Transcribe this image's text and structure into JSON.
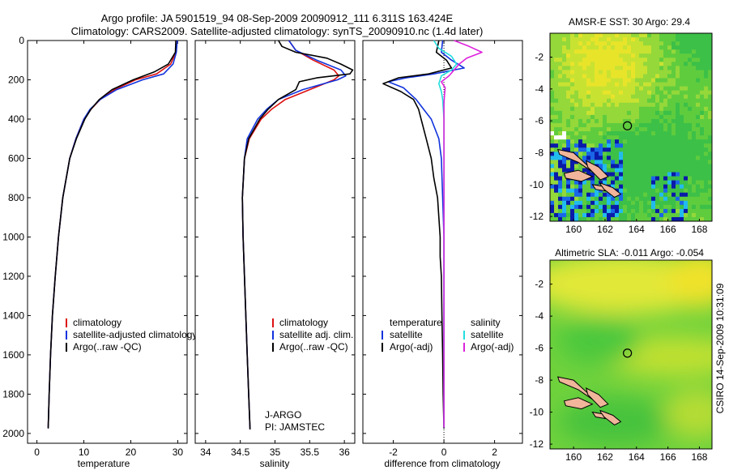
{
  "header": {
    "line1": "Argo profile: JA 5901519_94 08-Sep-2009 20090912_111 6.311S 163.424E",
    "line2": "Climatology: CARS2009. Satellite-adjusted climatology: synTS_20090910.nc (1.4d later)"
  },
  "footer": {
    "stamp": "CSIRO 14-Sep-2009 10:31:09"
  },
  "colors": {
    "climatology": "#dd1111",
    "satellite": "#1133dd",
    "argo": "#000000",
    "satellite_diff": "#22dddd",
    "argo_diff": "#dd22dd",
    "land": "#f0b59a",
    "map_green": "#55d040",
    "map_yellow": "#e6e830"
  },
  "chart_data": [
    {
      "type": "line",
      "id": "temperature",
      "xlabel": "temperature",
      "ylabel": "",
      "xlim": [
        -2,
        32
      ],
      "ylim": [
        2050,
        0
      ],
      "xticks": [
        "0",
        "10",
        "20",
        "30"
      ],
      "xtick_values": [
        0,
        10,
        20,
        30
      ],
      "yticks": [
        "0",
        "200",
        "400",
        "600",
        "800",
        "1000",
        "1200",
        "1400",
        "1600",
        "1800",
        "2000"
      ],
      "ytick_values": [
        0,
        200,
        400,
        600,
        800,
        1000,
        1200,
        1400,
        1600,
        1800,
        2000
      ],
      "legend_placement": "lower-middle",
      "legend": [
        "climatology",
        "satellite-adjusted climatology",
        "Argo(..raw -QC)"
      ],
      "series": [
        {
          "name": "climatology",
          "color": "#dd1111",
          "depth": [
            0,
            60,
            120,
            170,
            200,
            250,
            300,
            350,
            400,
            500,
            600,
            800,
            1000,
            1200,
            1400,
            1600,
            1800,
            1970
          ],
          "values": [
            29.9,
            29.6,
            28.5,
            25.5,
            21,
            16.5,
            13.5,
            11.5,
            10,
            8.3,
            7,
            5.5,
            4.6,
            3.9,
            3.3,
            2.9,
            2.6,
            2.4
          ]
        },
        {
          "name": "satellite-adjusted climatology",
          "color": "#1133dd",
          "depth": [
            0,
            60,
            120,
            170,
            200,
            250,
            300,
            350,
            400,
            500,
            600,
            800,
            1000,
            1200,
            1400,
            1600,
            1800,
            1970
          ],
          "values": [
            29.9,
            29.7,
            29,
            27,
            22.5,
            17,
            13.5,
            11.3,
            10,
            8.3,
            7,
            5.5,
            4.6,
            3.9,
            3.3,
            2.9,
            2.6,
            2.4
          ]
        },
        {
          "name": "Argo(..raw -QC)",
          "color": "#000000",
          "depth": [
            0,
            60,
            120,
            160,
            200,
            250,
            300,
            350,
            400,
            500,
            600,
            800,
            1000,
            1200,
            1400,
            1600,
            1800,
            1975
          ],
          "values": [
            29.6,
            29.5,
            28,
            25,
            20.5,
            16,
            13.3,
            11.5,
            10.2,
            8.4,
            7,
            5.5,
            4.6,
            3.9,
            3.3,
            2.9,
            2.6,
            2.4
          ]
        }
      ]
    },
    {
      "type": "line",
      "id": "salinity",
      "xlabel": "salinity",
      "ylabel": "",
      "xlim": [
        33.85,
        36.15
      ],
      "ylim": [
        2050,
        0
      ],
      "xticks": [
        "34",
        "34.5",
        "35",
        "35.5",
        "36"
      ],
      "xtick_values": [
        34,
        34.5,
        35,
        35.5,
        36
      ],
      "legend_placement": "lower-right",
      "legend": [
        "climatology",
        "satellite adj. clim.",
        "Argo(..raw -QC)"
      ],
      "annotations": [
        "J-ARGO",
        "PI: JAMSTEC"
      ],
      "series": [
        {
          "name": "climatology",
          "color": "#dd1111",
          "depth": [
            0,
            50,
            100,
            150,
            180,
            200,
            250,
            300,
            350,
            400,
            500,
            600,
            800,
            1000,
            1200,
            1400,
            1600,
            1800,
            1980
          ],
          "values": [
            35.2,
            35.3,
            35.55,
            35.85,
            35.92,
            35.85,
            35.5,
            35.15,
            34.95,
            34.8,
            34.63,
            34.56,
            34.53,
            34.54,
            34.56,
            34.58,
            34.6,
            34.62,
            34.64
          ]
        },
        {
          "name": "satellite adj. clim.",
          "color": "#1133dd",
          "depth": [
            0,
            50,
            100,
            150,
            180,
            200,
            250,
            300,
            350,
            400,
            500,
            600,
            800,
            1000,
            1200,
            1400,
            1600,
            1800,
            1980
          ],
          "values": [
            35.2,
            35.3,
            35.6,
            35.95,
            36.02,
            35.9,
            35.4,
            35.05,
            34.88,
            34.75,
            34.6,
            34.56,
            34.53,
            34.54,
            34.56,
            34.58,
            34.6,
            34.62,
            34.64
          ]
        },
        {
          "name": "Argo(..raw -QC)",
          "color": "#000000",
          "depth": [
            0,
            30,
            60,
            90,
            120,
            150,
            170,
            190,
            210,
            250,
            300,
            350,
            400,
            500,
            600,
            800,
            1000,
            1200,
            1400,
            1600,
            1800,
            1980
          ],
          "values": [
            35.05,
            35.1,
            35.3,
            35.75,
            35.95,
            36.12,
            36.08,
            35.6,
            35.35,
            35.3,
            35.05,
            34.9,
            34.78,
            34.62,
            34.56,
            34.53,
            34.54,
            34.56,
            34.58,
            34.6,
            34.62,
            34.64
          ]
        }
      ]
    },
    {
      "type": "line",
      "id": "difference",
      "xlabel": "difference from climatology",
      "ylabel": "",
      "xlim": [
        -3.2,
        3.1
      ],
      "ylim": [
        2050,
        0
      ],
      "xticks": [
        "-2",
        "0",
        "2"
      ],
      "xtick_values": [
        -2,
        0,
        2
      ],
      "legend_placement": "lower-middle",
      "legend": [
        {
          "title": "temperature",
          "items": [
            "satellite",
            "Argo(-adj)"
          ]
        },
        {
          "title": "salinity",
          "items": [
            "satellite",
            "Argo(-adj)"
          ]
        }
      ],
      "series": [
        {
          "name": "satellite",
          "group": "temperature",
          "color": "#1133dd",
          "depth": [
            0,
            60,
            100,
            140,
            170,
            190,
            210,
            240,
            300,
            350,
            400,
            500,
            600,
            800,
            1000,
            1500,
            1970
          ],
          "values": [
            -0.05,
            -0.1,
            0.3,
            0.8,
            -0.4,
            -1.5,
            -2.2,
            -1.6,
            -1.1,
            -0.8,
            -0.5,
            -0.2,
            -0.1,
            -0.05,
            0,
            0,
            0
          ]
        },
        {
          "name": "Argo(-adj)",
          "group": "temperature",
          "color": "#000000",
          "depth": [
            0,
            60,
            100,
            140,
            170,
            190,
            220,
            260,
            300,
            350,
            400,
            500,
            600,
            700,
            800,
            900,
            1000,
            1100,
            1200,
            1400,
            1600,
            1800,
            1975
          ],
          "values": [
            -0.2,
            -0.3,
            0.1,
            0.3,
            -0.6,
            -1.8,
            -2.4,
            -1.7,
            -1.2,
            -1.0,
            -0.9,
            -0.7,
            -0.5,
            -0.4,
            -0.25,
            -0.2,
            -0.15,
            -0.15,
            -0.1,
            -0.08,
            -0.05,
            -0.03,
            0
          ]
        },
        {
          "name": "satellite",
          "group": "salinity",
          "color": "#22dddd",
          "depth": [
            0,
            40,
            80,
            120,
            150,
            180,
            220,
            260,
            300,
            400,
            600,
            1000,
            1500,
            1970
          ],
          "values": [
            -0.4,
            -0.2,
            0.3,
            0.5,
            0.3,
            -0.1,
            -0.2,
            -0.1,
            -0.05,
            0,
            0,
            0,
            0,
            0
          ]
        },
        {
          "name": "Argo(-adj)",
          "group": "salinity",
          "color": "#dd22dd",
          "depth": [
            0,
            30,
            60,
            90,
            120,
            150,
            180,
            210,
            240,
            280,
            320,
            400,
            600,
            1000,
            1500,
            1970
          ],
          "values": [
            0.4,
            1.0,
            1.5,
            0.9,
            0.6,
            0.4,
            0.2,
            -0.1,
            0.05,
            0.02,
            0,
            0,
            0,
            0,
            0,
            0
          ]
        }
      ]
    },
    {
      "type": "heatmap",
      "id": "sst_map",
      "title": "AMSR-E SST: 30  Argo: 29.4",
      "xlim": [
        158.5,
        168.8
      ],
      "ylim": [
        -12.3,
        -0.5
      ],
      "xticks": [
        "160",
        "162",
        "164",
        "166",
        "168"
      ],
      "xtick_values": [
        160,
        162,
        164,
        166,
        168
      ],
      "yticks": [
        "-2",
        "-4",
        "-6",
        "-8",
        "-10",
        "-12"
      ],
      "ytick_values": [
        -2,
        -4,
        -6,
        -8,
        -10,
        -12
      ],
      "argo_position": [
        163.424,
        -6.311
      ]
    },
    {
      "type": "heatmap",
      "id": "sla_map",
      "title": "Altimetric SLA: -0.011  Argo: -0.054",
      "xlim": [
        158.5,
        168.8
      ],
      "ylim": [
        -12.3,
        -0.5
      ],
      "xticks": [
        "160",
        "162",
        "164",
        "166",
        "168"
      ],
      "xtick_values": [
        160,
        162,
        164,
        166,
        168
      ],
      "yticks": [
        "-2",
        "-4",
        "-6",
        "-8",
        "-10",
        "-12"
      ],
      "ytick_values": [
        -2,
        -4,
        -6,
        -8,
        -10,
        -12
      ],
      "argo_position": [
        163.424,
        -6.311
      ]
    }
  ]
}
